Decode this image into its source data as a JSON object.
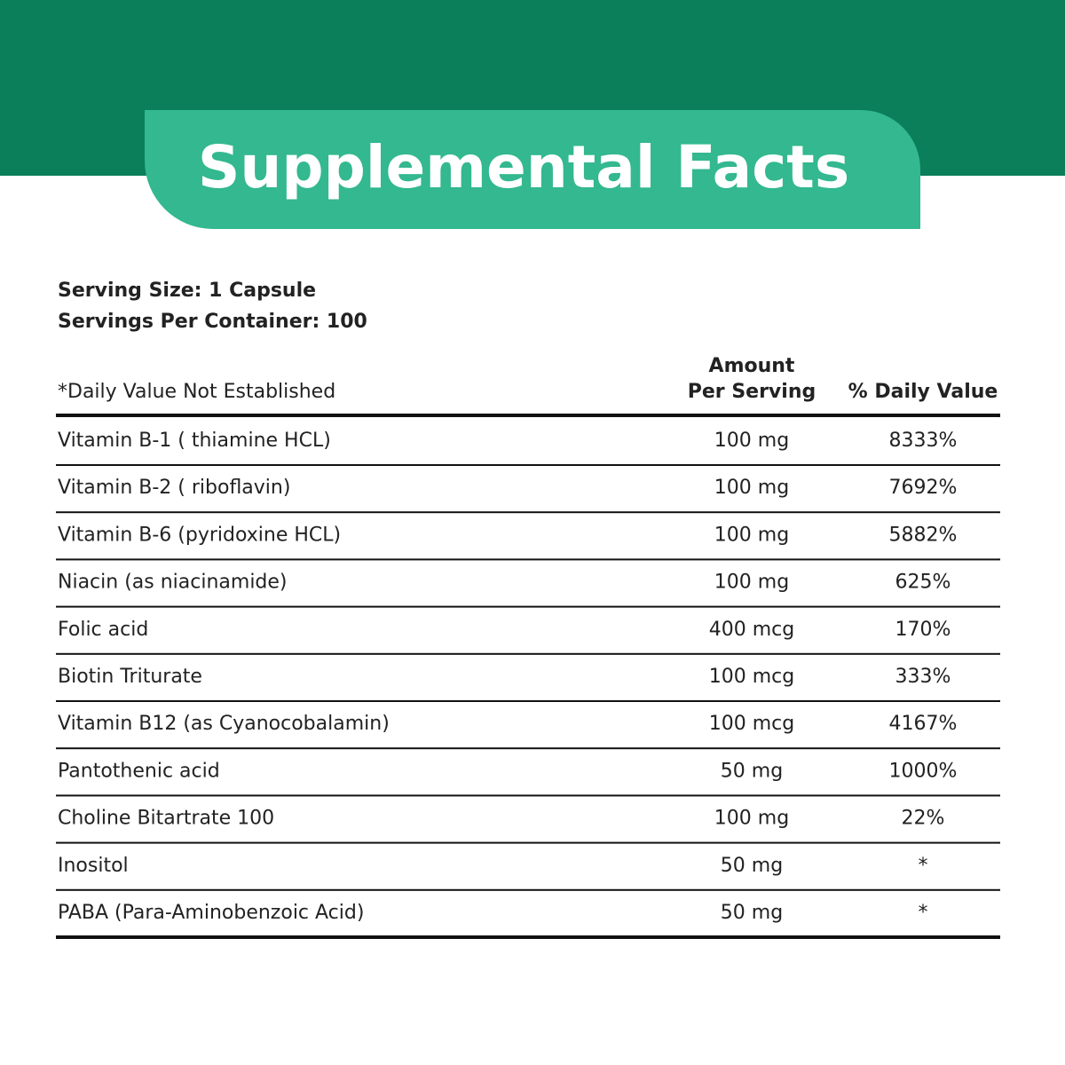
{
  "header": {
    "title": "Supplemental Facts"
  },
  "serving": {
    "size": "Serving Size: 1 Capsule",
    "per_container": "Servings Per Container: 100"
  },
  "table": {
    "note": "*Daily Value Not Established",
    "amount_header": [
      "Amount",
      "Per Serving"
    ],
    "daily_value_header": "% Daily Value",
    "rows": [
      [
        "Vitamin B-1 ( thiamine HCL)",
        "100 mg",
        "8333%"
      ],
      [
        "Vitamin B-2 ( riboflavin)",
        "100 mg",
        "7692%"
      ],
      [
        "Vitamin B-6 (pyridoxine HCL)",
        "100 mg",
        "5882%"
      ],
      [
        "Niacin (as niacinamide)",
        "100 mg",
        "625%"
      ],
      [
        "Folic acid",
        "400 mcg",
        "170%"
      ],
      [
        "Biotin Triturate",
        "100 mcg",
        "333%"
      ],
      [
        "Vitamin B12 (as Cyanocobalamin)",
        "100 mcg",
        "4167%"
      ],
      [
        "Pantothenic acid",
        "50 mg",
        "1000%"
      ],
      [
        "Choline Bitartrate 100",
        "100 mg",
        "22%"
      ],
      [
        "Inositol",
        "50 mg",
        "*"
      ],
      [
        "PABA (Para-Aminobenzoic Acid)",
        "50 mg",
        "*"
      ]
    ]
  }
}
